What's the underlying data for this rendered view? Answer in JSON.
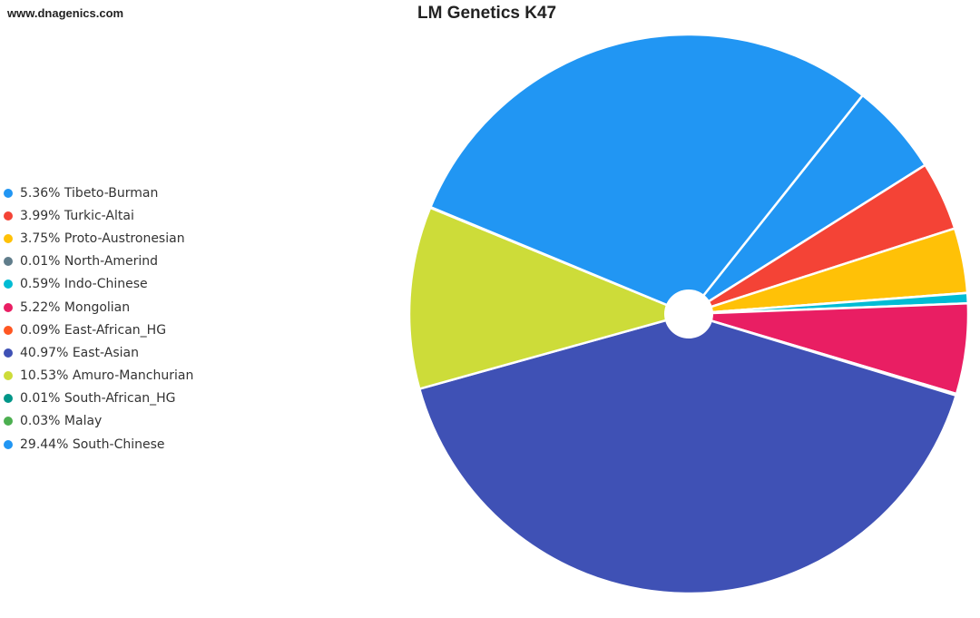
{
  "header": {
    "site": "www.dnagenics.com"
  },
  "chart_data": {
    "type": "pie",
    "title": "LM Genetics K47",
    "legend_position": "left",
    "slices": [
      {
        "label": "Tibeto-Burman",
        "value": 5.36,
        "display": "5.36% Tibeto-Burman",
        "color": "#2196f3"
      },
      {
        "label": "Turkic-Altai",
        "value": 3.99,
        "display": "3.99% Turkic-Altai",
        "color": "#f44336"
      },
      {
        "label": "Proto-Austronesian",
        "value": 3.75,
        "display": "3.75% Proto-Austronesian",
        "color": "#ffc107"
      },
      {
        "label": "North-Amerind",
        "value": 0.01,
        "display": "0.01% North-Amerind",
        "color": "#607d8b"
      },
      {
        "label": "Indo-Chinese",
        "value": 0.59,
        "display": "0.59% Indo-Chinese",
        "color": "#00bcd4"
      },
      {
        "label": "Mongolian",
        "value": 5.22,
        "display": "5.22% Mongolian",
        "color": "#e91e63"
      },
      {
        "label": "East-African_HG",
        "value": 0.09,
        "display": "0.09% East-African_HG",
        "color": "#ff5722"
      },
      {
        "label": "East-Asian",
        "value": 40.97,
        "display": "40.97% East-Asian",
        "color": "#3f51b5"
      },
      {
        "label": "Amuro-Manchurian",
        "value": 10.53,
        "display": "10.53% Amuro-Manchurian",
        "color": "#cddc39"
      },
      {
        "label": "South-African_HG",
        "value": 0.01,
        "display": "0.01% South-African_HG",
        "color": "#009688"
      },
      {
        "label": "Malay",
        "value": 0.03,
        "display": "0.03% Malay",
        "color": "#4caf50"
      },
      {
        "label": "South-Chinese",
        "value": 29.44,
        "display": "29.44% South-Chinese",
        "color": "#2196f3"
      }
    ]
  }
}
